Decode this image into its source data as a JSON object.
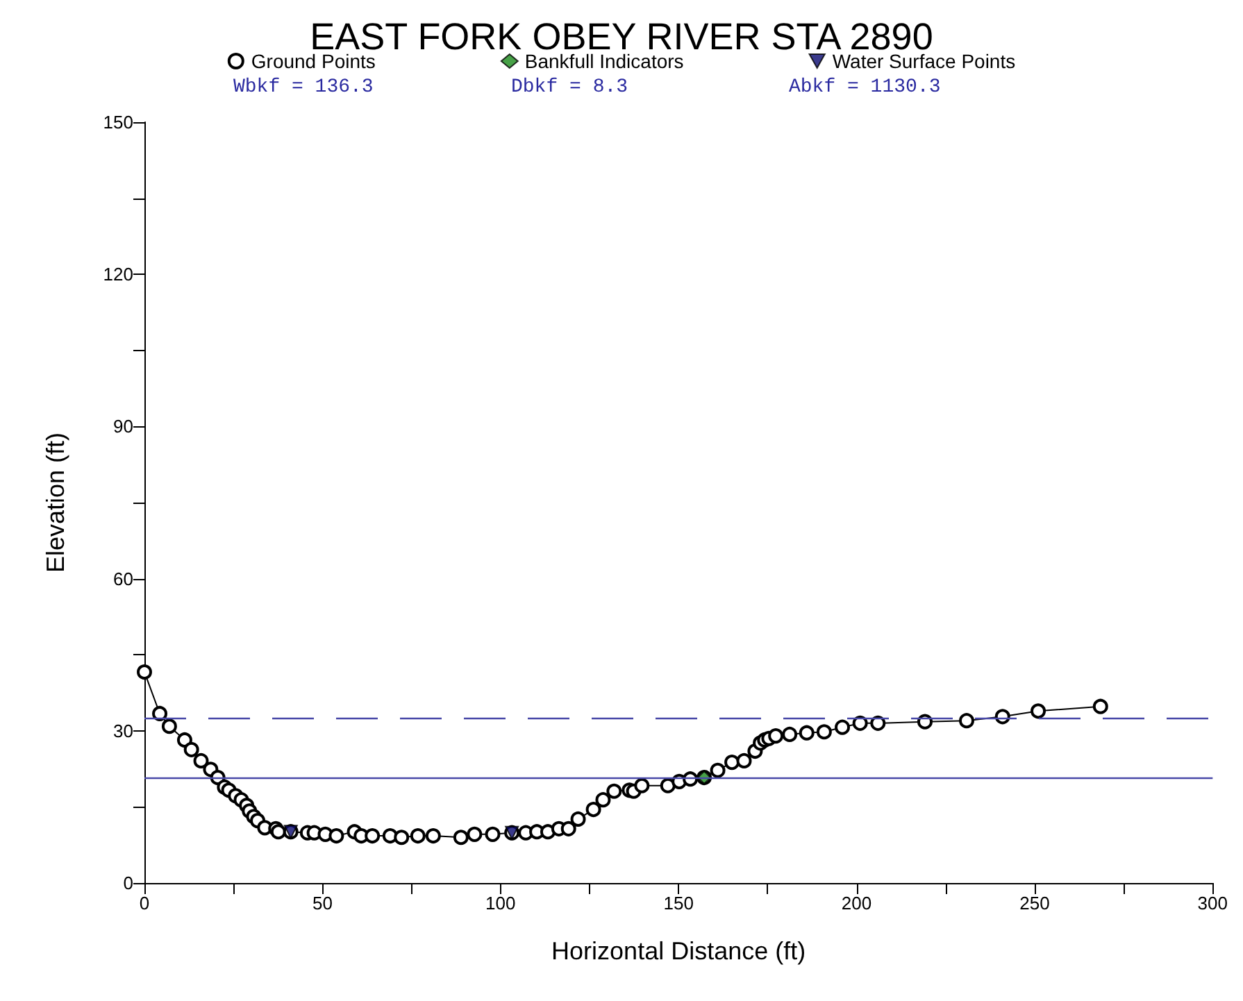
{
  "chart_data": {
    "type": "line",
    "title": "EAST FORK OBEY RIVER STA 2890",
    "xlabel": "Horizontal Distance (ft)",
    "ylabel": "Elevation (ft)",
    "annotations": [
      "Wbkf = 136.3",
      "Dbkf = 8.3",
      "Abkf = 1130.3"
    ],
    "xlim": [
      0,
      300
    ],
    "xticks": [
      0,
      {
        "value": 25,
        "label": null
      },
      50,
      {
        "value": 75,
        "label": null
      },
      100,
      {
        "value": 125,
        "label": null
      },
      150,
      {
        "value": 175,
        "label": null
      },
      200,
      {
        "value": 225,
        "label": null
      },
      250,
      {
        "value": 275,
        "label": null
      },
      300
    ],
    "ylim": [
      0,
      150
    ],
    "yticks": [
      0,
      {
        "value": 15,
        "label": null
      },
      30,
      {
        "value": 45,
        "label": null
      },
      60,
      {
        "value": 75,
        "label": null
      },
      90,
      {
        "value": 105,
        "label": null
      },
      120,
      {
        "value": 135,
        "label": null
      },
      150
    ],
    "grid": false,
    "legend": "top",
    "ref_lines": [
      {
        "axis": "y",
        "value": 32.6,
        "label": null,
        "color": "#4848a8",
        "line_style": "dashed"
      },
      {
        "axis": "y",
        "value": 20.8,
        "label": null,
        "color": "#4848a8",
        "line_style": "solid"
      }
    ],
    "series": [
      {
        "name": "Ground Points",
        "type": "line",
        "color": "#000000",
        "marker": "circle",
        "line_style": "solid",
        "x": [
          0,
          4.3,
          7,
          11.3,
          13.2,
          15.9,
          18.6,
          20.6,
          22.5,
          23.7,
          25.6,
          27.2,
          28.7,
          29.5,
          30.7,
          31.8,
          33.8,
          36.9,
          37.6,
          41.1,
          45.8,
          47.7,
          50.8,
          53.9,
          59,
          60.9,
          64,
          69,
          72.2,
          76.8,
          81.1,
          88.9,
          92.7,
          97.8,
          103.2,
          107.1,
          110.2,
          113.3,
          116.4,
          119.1,
          121.8,
          126.1,
          128.8,
          131.9,
          136.2,
          137.4,
          139.7,
          147,
          150.2,
          153.3,
          157.2,
          161,
          165,
          168.4,
          171.5,
          173,
          174.2,
          175.4,
          177.3,
          181.2,
          186,
          190.9,
          196,
          201,
          206,
          219.2,
          230.9,
          241,
          251,
          268.5
        ],
        "values": [
          41.6,
          33.4,
          30.9,
          28.2,
          26.3,
          24.1,
          22.4,
          20.8,
          18.9,
          18.3,
          17.2,
          16.4,
          15.3,
          14.2,
          13.1,
          12.3,
          10.9,
          10.7,
          10.1,
          10.1,
          9.9,
          9.9,
          9.6,
          9.3,
          10.1,
          9.3,
          9.3,
          9.3,
          9,
          9.3,
          9.3,
          9,
          9.6,
          9.6,
          9.9,
          9.9,
          10.1,
          10.1,
          10.7,
          10.7,
          12.6,
          14.5,
          16.4,
          18.1,
          18.3,
          18.1,
          19.2,
          19.2,
          20,
          20.5,
          20.8,
          22.2,
          23.8,
          24.1,
          26,
          27.6,
          28.2,
          28.5,
          29,
          29.3,
          29.6,
          29.8,
          30.7,
          31.5,
          31.5,
          31.8,
          32,
          32.8,
          33.9,
          34.8
        ]
      },
      {
        "name": "Bankfull Indicators",
        "type": "scatter",
        "color": "#1a8a1a",
        "marker": "diamond",
        "x": [
          157.2
        ],
        "values": [
          20.8
        ]
      },
      {
        "name": "Water Surface Points",
        "type": "scatter",
        "color": "#0a0a70",
        "marker": "triangle",
        "x": [
          41.1,
          103.2
        ],
        "values": [
          10.1,
          9.9
        ]
      }
    ]
  }
}
